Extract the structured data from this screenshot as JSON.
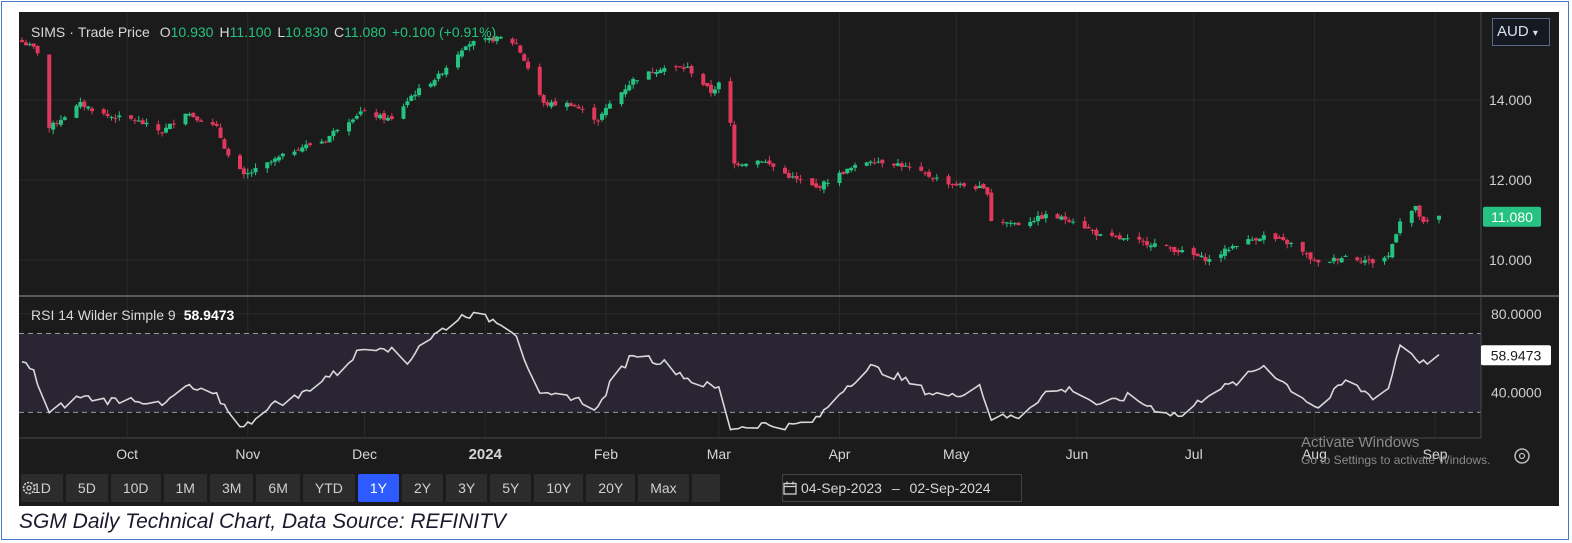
{
  "header": {
    "symbol": "SIMS",
    "separator": "·",
    "series_type": "Trade Price",
    "open_label": "O",
    "open_value": "10.930",
    "high_label": "H",
    "high_value": "11.100",
    "low_label": "L",
    "low_value": "10.830",
    "close_label": "C",
    "close_value": "11.080",
    "change": "+0.100 (+0.91%)"
  },
  "currency": "AUD",
  "price_tag": "11.080",
  "rsi_header": {
    "label": "RSI 14 Wilder Simple 9",
    "value": "58.9473"
  },
  "rsi_tag": "58.9473",
  "range_buttons": [
    "1D",
    "5D",
    "10D",
    "1M",
    "3M",
    "6M",
    "YTD",
    "1Y",
    "2Y",
    "3Y",
    "5Y",
    "10Y",
    "20Y",
    "Max"
  ],
  "active_range": "1Y",
  "date_range": {
    "start": "04-Sep-2023",
    "sep": "–",
    "end": "02-Sep-2024"
  },
  "watermark": {
    "line1": "Activate Windows",
    "line2": "Go to Settings to activate Windows."
  },
  "caption": "SGM Daily Technical Chart, Data Source: REFINITV",
  "colors": {
    "up": "#26c281",
    "down": "#e0385c",
    "background": "#1b1b1b",
    "rsi_line": "#d8d8d8",
    "rsi_band": "#2a2533",
    "active_button": "#2e5bff",
    "price_tag": "#26c281"
  },
  "icons": {
    "settings": "gear-icon",
    "calendar": "calendar-icon",
    "chart_settings": "settings-circle-icon"
  },
  "chart_data": [
    {
      "type": "candlestick",
      "title": "SIMS · Trade Price",
      "y_ticks": [
        "14.000",
        "12.000",
        "10.000"
      ],
      "ylim": [
        9.1,
        16.2
      ],
      "x_ticks": [
        "Oct",
        "Nov",
        "Dec",
        "2024",
        "Feb",
        "Mar",
        "Apr",
        "May",
        "Jun",
        "Jul",
        "Aug",
        "Sep"
      ],
      "x_tick_dates": [
        "2023-10-01",
        "2023-11-01",
        "2023-12-01",
        "2024-01-01",
        "2024-02-01",
        "2024-03-01",
        "2024-04-01",
        "2024-05-01",
        "2024-06-01",
        "2024-07-01",
        "2024-08-01",
        "2024-09-01"
      ],
      "date_range": [
        "2023-09-04",
        "2024-09-02"
      ],
      "close_anchors": [
        [
          "2023-09-04",
          15.45
        ],
        [
          "2023-09-07",
          15.3
        ],
        [
          "2023-09-08",
          15.2
        ],
        [
          "2023-09-11",
          13.3
        ],
        [
          "2023-09-19",
          13.9
        ],
        [
          "2023-09-26",
          13.6
        ],
        [
          "2023-10-03",
          13.5
        ],
        [
          "2023-10-10",
          13.2
        ],
        [
          "2023-10-16",
          13.7
        ],
        [
          "2023-10-24",
          13.3
        ],
        [
          "2023-10-27",
          12.6
        ],
        [
          "2023-10-31",
          12.1
        ],
        [
          "2023-11-06",
          12.4
        ],
        [
          "2023-11-14",
          12.8
        ],
        [
          "2023-11-21",
          13.0
        ],
        [
          "2023-11-24",
          13.3
        ],
        [
          "2023-11-30",
          13.7
        ],
        [
          "2023-12-08",
          13.5
        ],
        [
          "2023-12-13",
          14.1
        ],
        [
          "2023-12-20",
          14.6
        ],
        [
          "2023-12-27",
          15.4
        ],
        [
          "2024-01-05",
          15.55
        ],
        [
          "2024-01-09",
          15.4
        ],
        [
          "2024-01-12",
          14.8
        ],
        [
          "2024-01-16",
          13.9
        ],
        [
          "2024-01-23",
          13.9
        ],
        [
          "2024-01-30",
          13.5
        ],
        [
          "2024-02-02",
          13.9
        ],
        [
          "2024-02-08",
          14.5
        ],
        [
          "2024-02-15",
          14.8
        ],
        [
          "2024-02-22",
          14.8
        ],
        [
          "2024-02-28",
          14.2
        ],
        [
          "2024-03-01",
          14.4
        ],
        [
          "2024-03-04",
          13.4
        ],
        [
          "2024-03-05",
          12.4
        ],
        [
          "2024-03-12",
          12.5
        ],
        [
          "2024-03-19",
          12.1
        ],
        [
          "2024-03-26",
          11.8
        ],
        [
          "2024-04-02",
          12.2
        ],
        [
          "2024-04-09",
          12.5
        ],
        [
          "2024-04-16",
          12.4
        ],
        [
          "2024-04-24",
          12.1
        ],
        [
          "2024-04-30",
          11.9
        ],
        [
          "2024-05-07",
          11.8
        ],
        [
          "2024-05-09",
          11.7
        ],
        [
          "2024-05-10",
          11.0
        ],
        [
          "2024-05-17",
          10.9
        ],
        [
          "2024-05-24",
          11.1
        ],
        [
          "2024-05-31",
          11.0
        ],
        [
          "2024-06-07",
          10.6
        ],
        [
          "2024-06-14",
          10.5
        ],
        [
          "2024-06-21",
          10.4
        ],
        [
          "2024-06-28",
          10.2
        ],
        [
          "2024-07-05",
          10.0
        ],
        [
          "2024-07-12",
          10.4
        ],
        [
          "2024-07-19",
          10.6
        ],
        [
          "2024-07-26",
          10.4
        ],
        [
          "2024-08-02",
          9.9
        ],
        [
          "2024-08-09",
          10.1
        ],
        [
          "2024-08-16",
          9.95
        ],
        [
          "2024-08-20",
          10.1
        ],
        [
          "2024-08-23",
          11.0
        ],
        [
          "2024-08-27",
          11.3
        ],
        [
          "2024-08-29",
          10.9
        ],
        [
          "2024-09-02",
          11.08
        ]
      ]
    },
    {
      "type": "line",
      "title": "RSI 14 Wilder Simple 9",
      "y_ticks": [
        "80.0000",
        "40.0000"
      ],
      "ylim": [
        17,
        88
      ],
      "upper_band": 70,
      "lower_band": 30,
      "rsi_anchors": [
        [
          "2023-09-04",
          56
        ],
        [
          "2023-09-07",
          50
        ],
        [
          "2023-09-11",
          30
        ],
        [
          "2023-09-19",
          38
        ],
        [
          "2023-09-26",
          36
        ],
        [
          "2023-10-03",
          37
        ],
        [
          "2023-10-10",
          33
        ],
        [
          "2023-10-16",
          43
        ],
        [
          "2023-10-24",
          38
        ],
        [
          "2023-10-31",
          22
        ],
        [
          "2023-11-06",
          33
        ],
        [
          "2023-11-14",
          38
        ],
        [
          "2023-11-21",
          48
        ],
        [
          "2023-11-24",
          50
        ],
        [
          "2023-11-30",
          62
        ],
        [
          "2023-12-06",
          64
        ],
        [
          "2023-12-12",
          55
        ],
        [
          "2023-12-15",
          64
        ],
        [
          "2023-12-21",
          72
        ],
        [
          "2023-12-27",
          80
        ],
        [
          "2024-01-05",
          76
        ],
        [
          "2024-01-09",
          70
        ],
        [
          "2024-01-11",
          58
        ],
        [
          "2024-01-15",
          38
        ],
        [
          "2024-01-23",
          38
        ],
        [
          "2024-01-30",
          32
        ],
        [
          "2024-02-02",
          44
        ],
        [
          "2024-02-08",
          60
        ],
        [
          "2024-02-16",
          55
        ],
        [
          "2024-02-23",
          46
        ],
        [
          "2024-03-01",
          42
        ],
        [
          "2024-03-04",
          22
        ],
        [
          "2024-03-12",
          24
        ],
        [
          "2024-03-19",
          23
        ],
        [
          "2024-03-26",
          26
        ],
        [
          "2024-04-02",
          42
        ],
        [
          "2024-04-09",
          53
        ],
        [
          "2024-04-16",
          48
        ],
        [
          "2024-04-24",
          40
        ],
        [
          "2024-04-30",
          38
        ],
        [
          "2024-05-07",
          44
        ],
        [
          "2024-05-10",
          27
        ],
        [
          "2024-05-17",
          28
        ],
        [
          "2024-05-24",
          40
        ],
        [
          "2024-05-31",
          42
        ],
        [
          "2024-06-07",
          33
        ],
        [
          "2024-06-14",
          38
        ],
        [
          "2024-06-21",
          32
        ],
        [
          "2024-06-28",
          28
        ],
        [
          "2024-07-05",
          40
        ],
        [
          "2024-07-12",
          45
        ],
        [
          "2024-07-19",
          54
        ],
        [
          "2024-07-26",
          42
        ],
        [
          "2024-08-02",
          32
        ],
        [
          "2024-08-09",
          46
        ],
        [
          "2024-08-16",
          38
        ],
        [
          "2024-08-20",
          42
        ],
        [
          "2024-08-23",
          65
        ],
        [
          "2024-08-27",
          58
        ],
        [
          "2024-08-29",
          55
        ],
        [
          "2024-09-02",
          58.95
        ]
      ]
    }
  ]
}
